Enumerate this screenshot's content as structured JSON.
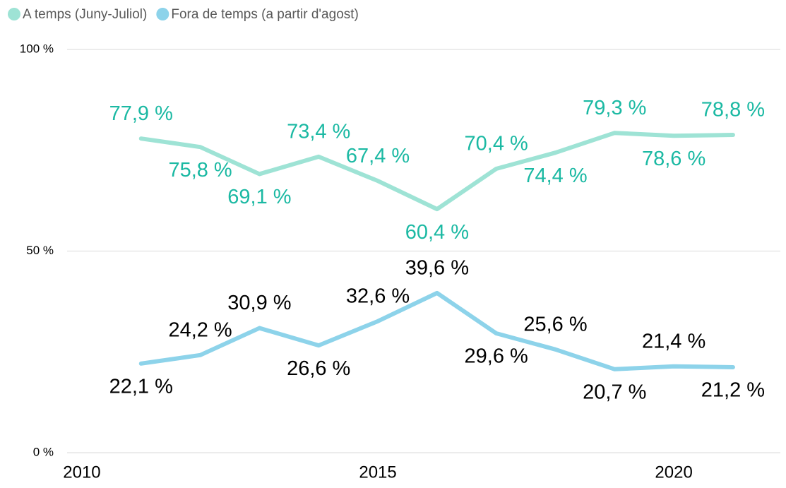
{
  "chart_data": {
    "type": "line",
    "x": [
      2011,
      2012,
      2013,
      2014,
      2015,
      2016,
      2017,
      2018,
      2019,
      2020,
      2021
    ],
    "series": [
      {
        "name": "A temps (Juny-Juliol)",
        "color": "#9ee3d5",
        "label_color": "#1bb9a3",
        "values": [
          77.9,
          75.8,
          69.1,
          73.4,
          67.4,
          60.4,
          70.4,
          74.4,
          79.3,
          78.6,
          78.8
        ],
        "value_labels": [
          "77,9 %",
          "75,8 %",
          "69,1 %",
          "73,4 %",
          "67,4 %",
          "60,4 %",
          "70,4 %",
          "74,4 %",
          "79,3 %",
          "78,6 %",
          "78,8 %"
        ]
      },
      {
        "name": "Fora de temps (a partir d'agost)",
        "color": "#8dd3ea",
        "label_color": "#000000",
        "values": [
          22.1,
          24.2,
          30.9,
          26.6,
          32.6,
          39.6,
          29.6,
          25.6,
          20.7,
          21.4,
          21.2
        ],
        "value_labels": [
          "22,1 %",
          "24,2 %",
          "30,9 %",
          "26,6 %",
          "32,6 %",
          "39,6 %",
          "29,6 %",
          "25,6 %",
          "20,7 %",
          "21,4 %",
          "21,2 %"
        ]
      }
    ],
    "xlim": [
      2009.75,
      2021.8
    ],
    "xticks": [
      2010,
      2015,
      2020
    ],
    "ylim": [
      0,
      100
    ],
    "yticks": [
      {
        "value": 0,
        "label": "0 %"
      },
      {
        "value": 50,
        "label": "50 %"
      },
      {
        "value": 100,
        "label": "100 %"
      }
    ],
    "grid": true,
    "legend": "top-left"
  }
}
